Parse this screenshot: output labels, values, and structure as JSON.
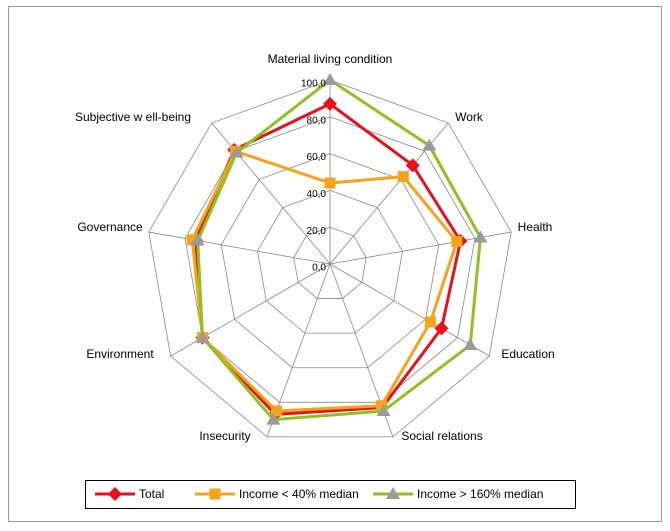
{
  "chart_data": {
    "type": "radar",
    "categories": [
      "Material living condition",
      "Work",
      "Health",
      "Education",
      "Social relations",
      "Insecurity",
      "Environment",
      "Governance",
      "Subjective w ell-being"
    ],
    "series": [
      {
        "name": "Total",
        "color": "#e8101a",
        "marker": "diamond",
        "values": [
          87,
          70,
          72,
          70,
          83,
          87,
          80,
          74,
          81
        ]
      },
      {
        "name": "Income < 40% median",
        "color": "#f7a21b",
        "marker": "square",
        "values": [
          44,
          62,
          70,
          63,
          82,
          85,
          80,
          76,
          80
        ]
      },
      {
        "name": "Income > 160% median",
        "color": "#8dc21f",
        "marker": "triangle",
        "values": [
          100,
          84,
          83,
          88,
          85,
          90,
          80,
          73,
          79
        ]
      }
    ],
    "ylim": [
      0,
      100
    ],
    "yticks": [
      {
        "value": 0,
        "label": "0,0"
      },
      {
        "value": 20,
        "label": "20,0"
      },
      {
        "value": 40,
        "label": "40,0"
      },
      {
        "value": 60,
        "label": "60,0"
      },
      {
        "value": 80,
        "label": "80,0"
      },
      {
        "value": 100,
        "label": "100,0"
      }
    ],
    "grid": true,
    "legend": "bottom"
  }
}
